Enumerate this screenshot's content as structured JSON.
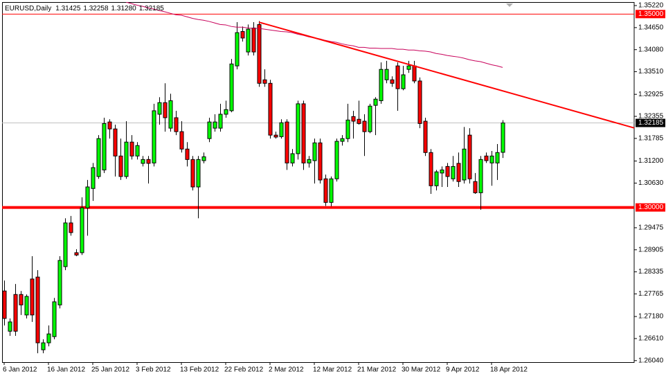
{
  "chart_data": {
    "type": "candlestick",
    "title": "EURUSD,Daily",
    "legend_values": [
      "1.31425",
      "1.32258",
      "1.31280",
      "1.32185"
    ],
    "categories": [
      "6 Jan 2012",
      null,
      null,
      null,
      null,
      null,
      null,
      null,
      "16 Jan 2012",
      null,
      null,
      null,
      null,
      null,
      null,
      null,
      "25 Jan 2012",
      null,
      null,
      null,
      null,
      null,
      null,
      null,
      "3 Feb 2012",
      null,
      null,
      null,
      null,
      null,
      null,
      null,
      "13 Feb 2012",
      null,
      null,
      null,
      null,
      null,
      null,
      null,
      "22 Feb 2012",
      null,
      null,
      null,
      null,
      null,
      null,
      null,
      "2 Mar 2012",
      null,
      null,
      null,
      null,
      null,
      null,
      null,
      "12 Mar 2012",
      null,
      null,
      null,
      null,
      null,
      null,
      null,
      "21 Mar 2012",
      null,
      null,
      null,
      null,
      null,
      null,
      null,
      "30 Mar 2012",
      null,
      null,
      null,
      null,
      null,
      null,
      null,
      "9 Apr 2012",
      null,
      null,
      null,
      null,
      null,
      null,
      null,
      "18 Apr 2012",
      null,
      null
    ],
    "open": [
      1.2784,
      1.268,
      1.2775,
      1.2775,
      1.2722,
      1.2815,
      1.282,
      1.2632,
      1.265,
      1.2666,
      1.2748,
      1.2847,
      1.296,
      1.2883,
      1.2883,
      1.2999,
      1.3049,
      1.308,
      1.3097,
      1.3221,
      1.3203,
      1.3133,
      1.308,
      1.3169,
      1.3133,
      1.3114,
      1.3124,
      1.3115,
      1.3241,
      1.3271,
      1.3205,
      1.3232,
      1.3196,
      1.3151,
      1.3124,
      1.3053,
      1.3121,
      1.3178,
      1.3205,
      1.3205,
      1.3241,
      1.325,
      1.3366,
      1.3455,
      1.3402,
      1.3464,
      1.3473,
      1.333,
      1.3321,
      1.3187,
      1.3183,
      1.3221,
      1.3115,
      1.3139,
      1.3268,
      1.3115,
      1.3121,
      1.3167,
      1.3074,
      1.3013,
      1.3074,
      1.3171,
      1.3178,
      1.3235,
      1.3228,
      1.3223,
      1.3196,
      1.3264,
      1.3276,
      1.333,
      1.333,
      1.3366,
      1.3307,
      1.3357,
      1.3366,
      1.3327,
      1.3223,
      1.3142,
      1.3056,
      1.3089,
      1.3106,
      1.3074,
      1.3114,
      1.3071,
      1.3187,
      1.3067,
      1.3038,
      1.3133,
      1.3115,
      1.3115,
      1.31425
    ],
    "high": [
      1.2811,
      1.2713,
      1.2802,
      1.2784,
      1.2775,
      1.2874,
      1.2838,
      1.2659,
      1.2695,
      1.2766,
      1.2874,
      1.2972,
      1.2978,
      1.2892,
      1.3026,
      1.3071,
      1.3115,
      1.3187,
      1.3232,
      1.3228,
      1.3214,
      1.3178,
      1.3223,
      1.3187,
      1.3169,
      1.3133,
      1.3133,
      1.3268,
      1.3285,
      1.3321,
      1.3294,
      1.325,
      1.3223,
      1.3169,
      1.3133,
      1.3133,
      1.3142,
      1.3232,
      1.3241,
      1.3268,
      1.3276,
      1.3384,
      1.3479,
      1.3468,
      1.3473,
      1.3479,
      1.3482,
      1.3357,
      1.333,
      1.3196,
      1.3228,
      1.3228,
      1.3151,
      1.3276,
      1.3276,
      1.3133,
      1.3178,
      1.3178,
      1.3085,
      1.308,
      1.3178,
      1.3187,
      1.3268,
      1.325,
      1.3276,
      1.3241,
      1.3268,
      1.3285,
      1.3375,
      1.3379,
      1.3339,
      1.3375,
      1.3366,
      1.3379,
      1.3379,
      1.3336,
      1.3232,
      1.3151,
      1.3097,
      1.3106,
      1.3115,
      1.3133,
      1.3142,
      1.3208,
      1.3205,
      1.3089,
      1.3133,
      1.3142,
      1.3146,
      1.3164,
      1.32258
    ],
    "low": [
      1.2695,
      1.2668,
      1.2668,
      1.2722,
      1.2713,
      1.2704,
      1.2623,
      1.2623,
      1.2641,
      1.2659,
      1.2739,
      1.2838,
      1.2927,
      1.2874,
      1.2877,
      1.2927,
      1.3017,
      1.3074,
      1.3089,
      1.3178,
      1.308,
      1.3071,
      1.3074,
      1.3124,
      1.3124,
      1.3106,
      1.3062,
      1.3106,
      1.3214,
      1.3196,
      1.3196,
      1.3187,
      1.3142,
      1.3106,
      1.3044,
      1.2972,
      1.3114,
      1.3169,
      1.3196,
      1.3196,
      1.3232,
      1.3246,
      1.3357,
      1.3429,
      1.3393,
      1.3393,
      1.3312,
      1.3312,
      1.3178,
      1.3178,
      1.3178,
      1.3097,
      1.3106,
      1.3124,
      1.3097,
      1.3103,
      1.3062,
      1.3062,
      1.3004,
      1.3003,
      1.3067,
      1.316,
      1.3169,
      1.3178,
      1.3214,
      1.3133,
      1.3192,
      1.3187,
      1.3268,
      1.3321,
      1.3312,
      1.325,
      1.3303,
      1.3348,
      1.3321,
      1.3205,
      1.3133,
      1.3035,
      1.3044,
      1.3053,
      1.3053,
      1.3067,
      1.3053,
      1.3062,
      1.3062,
      1.3035,
      1.2994,
      1.3115,
      1.3056,
      1.3071,
      1.3128
    ],
    "close": [
      1.2713,
      1.2704,
      1.268,
      1.2748,
      1.277,
      1.2722,
      1.265,
      1.265,
      1.2673,
      1.2756,
      1.2863,
      1.296,
      1.2935,
      1.2877,
      1.2999,
      1.3053,
      1.3103,
      1.3178,
      1.3217,
      1.3203,
      1.3133,
      1.308,
      1.3169,
      1.3133,
      1.316,
      1.3124,
      1.3114,
      1.325,
      1.3271,
      1.3232,
      1.3276,
      1.3196,
      1.3151,
      1.3124,
      1.3053,
      1.3124,
      1.3131,
      1.3221,
      1.3221,
      1.3241,
      1.3253,
      1.3371,
      1.3452,
      1.3438,
      1.3461,
      1.3402,
      1.3321,
      1.3321,
      1.3187,
      1.3182,
      1.3219,
      1.3115,
      1.3139,
      1.3268,
      1.3115,
      1.3124,
      1.3167,
      1.3071,
      1.3013,
      1.3074,
      1.3171,
      1.3178,
      1.3226,
      1.3223,
      1.3217,
      1.3196,
      1.3262,
      1.328,
      1.3357,
      1.3357,
      1.3321,
      1.3307,
      1.3343,
      1.3366,
      1.3327,
      1.3217,
      1.3142,
      1.3056,
      1.3092,
      1.3097,
      1.308,
      1.3106,
      1.3067,
      1.3151,
      1.3074,
      1.3038,
      1.3124,
      1.3121,
      1.3133,
      1.3142,
      1.32185
    ],
    "up_color": "#00ff00",
    "down_color": "#ff0000",
    "ma": {
      "color": "#c8005a",
      "values": [
        null,
        null,
        null,
        null,
        null,
        null,
        null,
        null,
        null,
        null,
        null,
        null,
        null,
        null,
        null,
        null,
        null,
        null,
        null,
        null,
        null,
        null,
        1.3531,
        1.3527,
        1.3523,
        1.352,
        1.3516,
        1.3513,
        1.3509,
        1.3506,
        1.3502,
        1.3498,
        1.3497,
        1.3493,
        1.3489,
        1.3486,
        1.3484,
        1.3481,
        1.3477,
        1.3473,
        1.3472,
        1.3468,
        1.3466,
        1.3466,
        1.3464,
        1.3463,
        1.3463,
        1.3461,
        1.3459,
        1.3457,
        1.3455,
        1.3454,
        1.3452,
        1.3448,
        1.3445,
        1.3441,
        1.3438,
        1.3436,
        1.3432,
        1.3429,
        1.3427,
        1.3423,
        1.342,
        1.3418,
        1.3414,
        1.3414,
        1.3412,
        1.3412,
        1.3411,
        1.3411,
        1.3411,
        1.3409,
        1.3409,
        1.3407,
        1.3407,
        1.3405,
        1.3404,
        1.3402,
        1.3398,
        1.3396,
        1.3393,
        1.3391,
        1.3389,
        1.3386,
        1.3382,
        1.3379,
        1.3377,
        1.3373,
        1.3369,
        1.3366,
        1.3362
      ]
    },
    "levels": [
      {
        "value": 1.35,
        "label": "1.35000",
        "color": "#ff0000"
      },
      {
        "value": 1.3,
        "label": "1.30000",
        "color": "#ff0000"
      }
    ],
    "trendline": {
      "x": [
        46,
        113.9
      ],
      "y": [
        1.3479,
        1.3205
      ],
      "color": "#ff0000"
    },
    "price_line_color": "#c0c0c0",
    "ylim": [
      1.26,
      1.3531
    ],
    "yticks": [
      {
        "value": 1.3522,
        "label": "1.35220"
      },
      {
        "value": 1.3465,
        "label": "1.34650"
      },
      {
        "value": 1.3408,
        "label": "1.34080"
      },
      {
        "value": 1.3351,
        "label": "1.33510"
      },
      1.32925,
      1.32355,
      1.31785,
      {
        "value": 1.312,
        "label": "1.31200"
      },
      {
        "value": 1.3063,
        "label": "1.30630"
      },
      1.29475,
      1.28905,
      1.28335,
      1.27765,
      {
        "value": 1.2718,
        "label": "1.27180"
      },
      {
        "value": 1.2661,
        "label": "1.26610"
      },
      {
        "value": 1.2604,
        "label": "1.26040"
      }
    ]
  }
}
